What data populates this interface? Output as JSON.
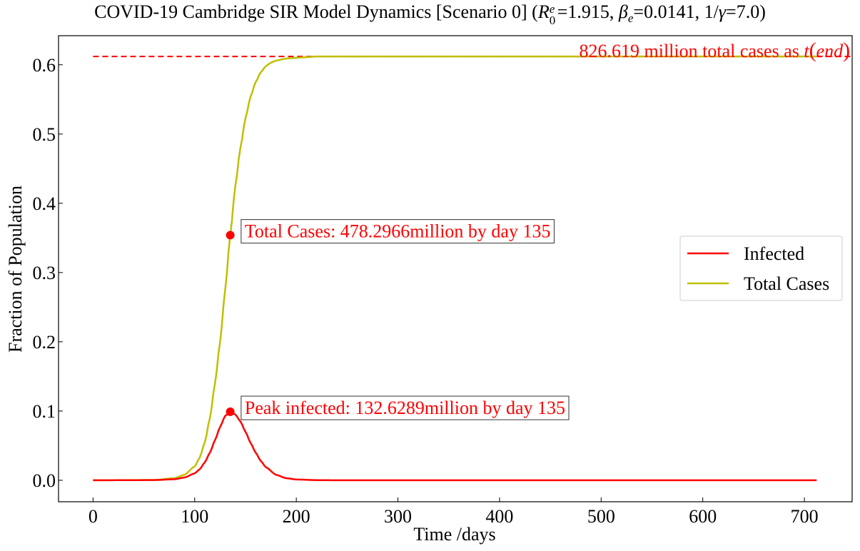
{
  "chart_data": {
    "type": "line",
    "title": {
      "prefix": "COVID-19 Cambridge SIR Model Dynamics [Scenario 0] (",
      "r_symbol": "R",
      "r_sup": "e",
      "r_sub": "0",
      "r_value": "=1.915, ",
      "beta_symbol": "β",
      "beta_sub": "e",
      "beta_value": "=0.0141, 1/",
      "gamma_symbol": "γ",
      "gamma_value": "=7.0)"
    },
    "xlabel": "Time /days",
    "ylabel": "Fraction of Population",
    "xlim": [
      -34,
      747
    ],
    "ylim": [
      -0.031,
      0.642
    ],
    "xticks": [
      0,
      100,
      200,
      300,
      400,
      500,
      600,
      700
    ],
    "yticks": [
      0.0,
      0.1,
      0.2,
      0.3,
      0.4,
      0.5,
      0.6
    ],
    "ytick_labels": [
      "0.0",
      "0.1",
      "0.2",
      "0.3",
      "0.4",
      "0.5",
      "0.6"
    ],
    "series": [
      {
        "name": "Infected",
        "color": "#ff0000",
        "x": [
          0,
          60,
          80,
          90,
          100,
          105,
          110,
          115,
          120,
          125,
          130,
          135,
          140,
          145,
          150,
          155,
          160,
          165,
          170,
          180,
          190,
          200,
          220,
          250,
          712
        ],
        "y": [
          0,
          0.0003,
          0.0015,
          0.004,
          0.01,
          0.016,
          0.026,
          0.04,
          0.058,
          0.077,
          0.093,
          0.099,
          0.095,
          0.085,
          0.07,
          0.054,
          0.04,
          0.028,
          0.019,
          0.008,
          0.003,
          0.0012,
          0.0002,
          0.0,
          0.0
        ]
      },
      {
        "name": "Total Cases",
        "color": "#bfbf00",
        "x": [
          0,
          60,
          80,
          90,
          100,
          105,
          110,
          115,
          120,
          125,
          130,
          135,
          140,
          145,
          150,
          155,
          160,
          165,
          170,
          175,
          180,
          190,
          200,
          210,
          220,
          240,
          712
        ],
        "y": [
          0,
          0.0005,
          0.003,
          0.008,
          0.02,
          0.033,
          0.055,
          0.09,
          0.14,
          0.2,
          0.275,
          0.354,
          0.425,
          0.48,
          0.523,
          0.554,
          0.575,
          0.589,
          0.598,
          0.603,
          0.606,
          0.609,
          0.61,
          0.611,
          0.612,
          0.612,
          0.612
        ]
      }
    ],
    "reference_line": {
      "y": 0.612,
      "x_start": 0,
      "x_end": 747,
      "color": "#ff0000",
      "style": "dashed"
    },
    "markers": [
      {
        "x": 135,
        "y": 0.354,
        "color": "#ff0000"
      },
      {
        "x": 135,
        "y": 0.099,
        "color": "#ff0000"
      }
    ],
    "annotations": [
      {
        "text": "Total Cases: 478.2966million by day 135",
        "x": 145,
        "y": 0.36,
        "boxed": true,
        "color": "#ff0000"
      },
      {
        "text": "Peak infected: 132.6289million by day 135",
        "x": 145,
        "y": 0.105,
        "boxed": true,
        "color": "#ff0000"
      },
      {
        "text_main": "826.619 million total cases as ",
        "text_italic_t": "t",
        "text_paren_open": "(",
        "text_italic_end": "end",
        "text_paren_close": ")",
        "x": 745,
        "y": 0.612,
        "boxed": false,
        "color": "#ff0000",
        "anchor": "end"
      }
    ],
    "legend": {
      "position": "right",
      "entries": [
        "Infected",
        "Total Cases"
      ]
    },
    "grid": false
  }
}
